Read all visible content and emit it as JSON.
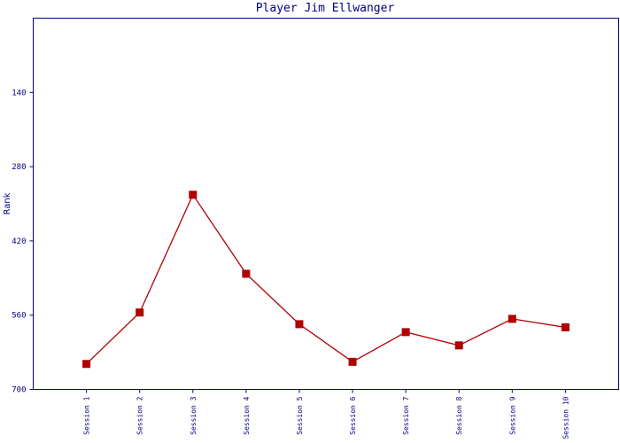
{
  "chart_data": {
    "type": "line",
    "title": "Player Jim Ellwanger",
    "y_label": "Rank",
    "categories": [
      "Session 1",
      "Session 2",
      "Session 3",
      "Session 4",
      "Session 5",
      "Session 6",
      "Session 7",
      "Session 8",
      "Session 9",
      "Session 10"
    ],
    "series": [
      {
        "name": "Rank",
        "color": "#b00000",
        "values": [
          652,
          555,
          333,
          482,
          577,
          648,
          592,
          617,
          567,
          583
        ]
      }
    ],
    "ylim": [
      700,
      0
    ],
    "yticks": [
      140,
      280,
      420,
      560,
      700
    ],
    "grid": false
  }
}
